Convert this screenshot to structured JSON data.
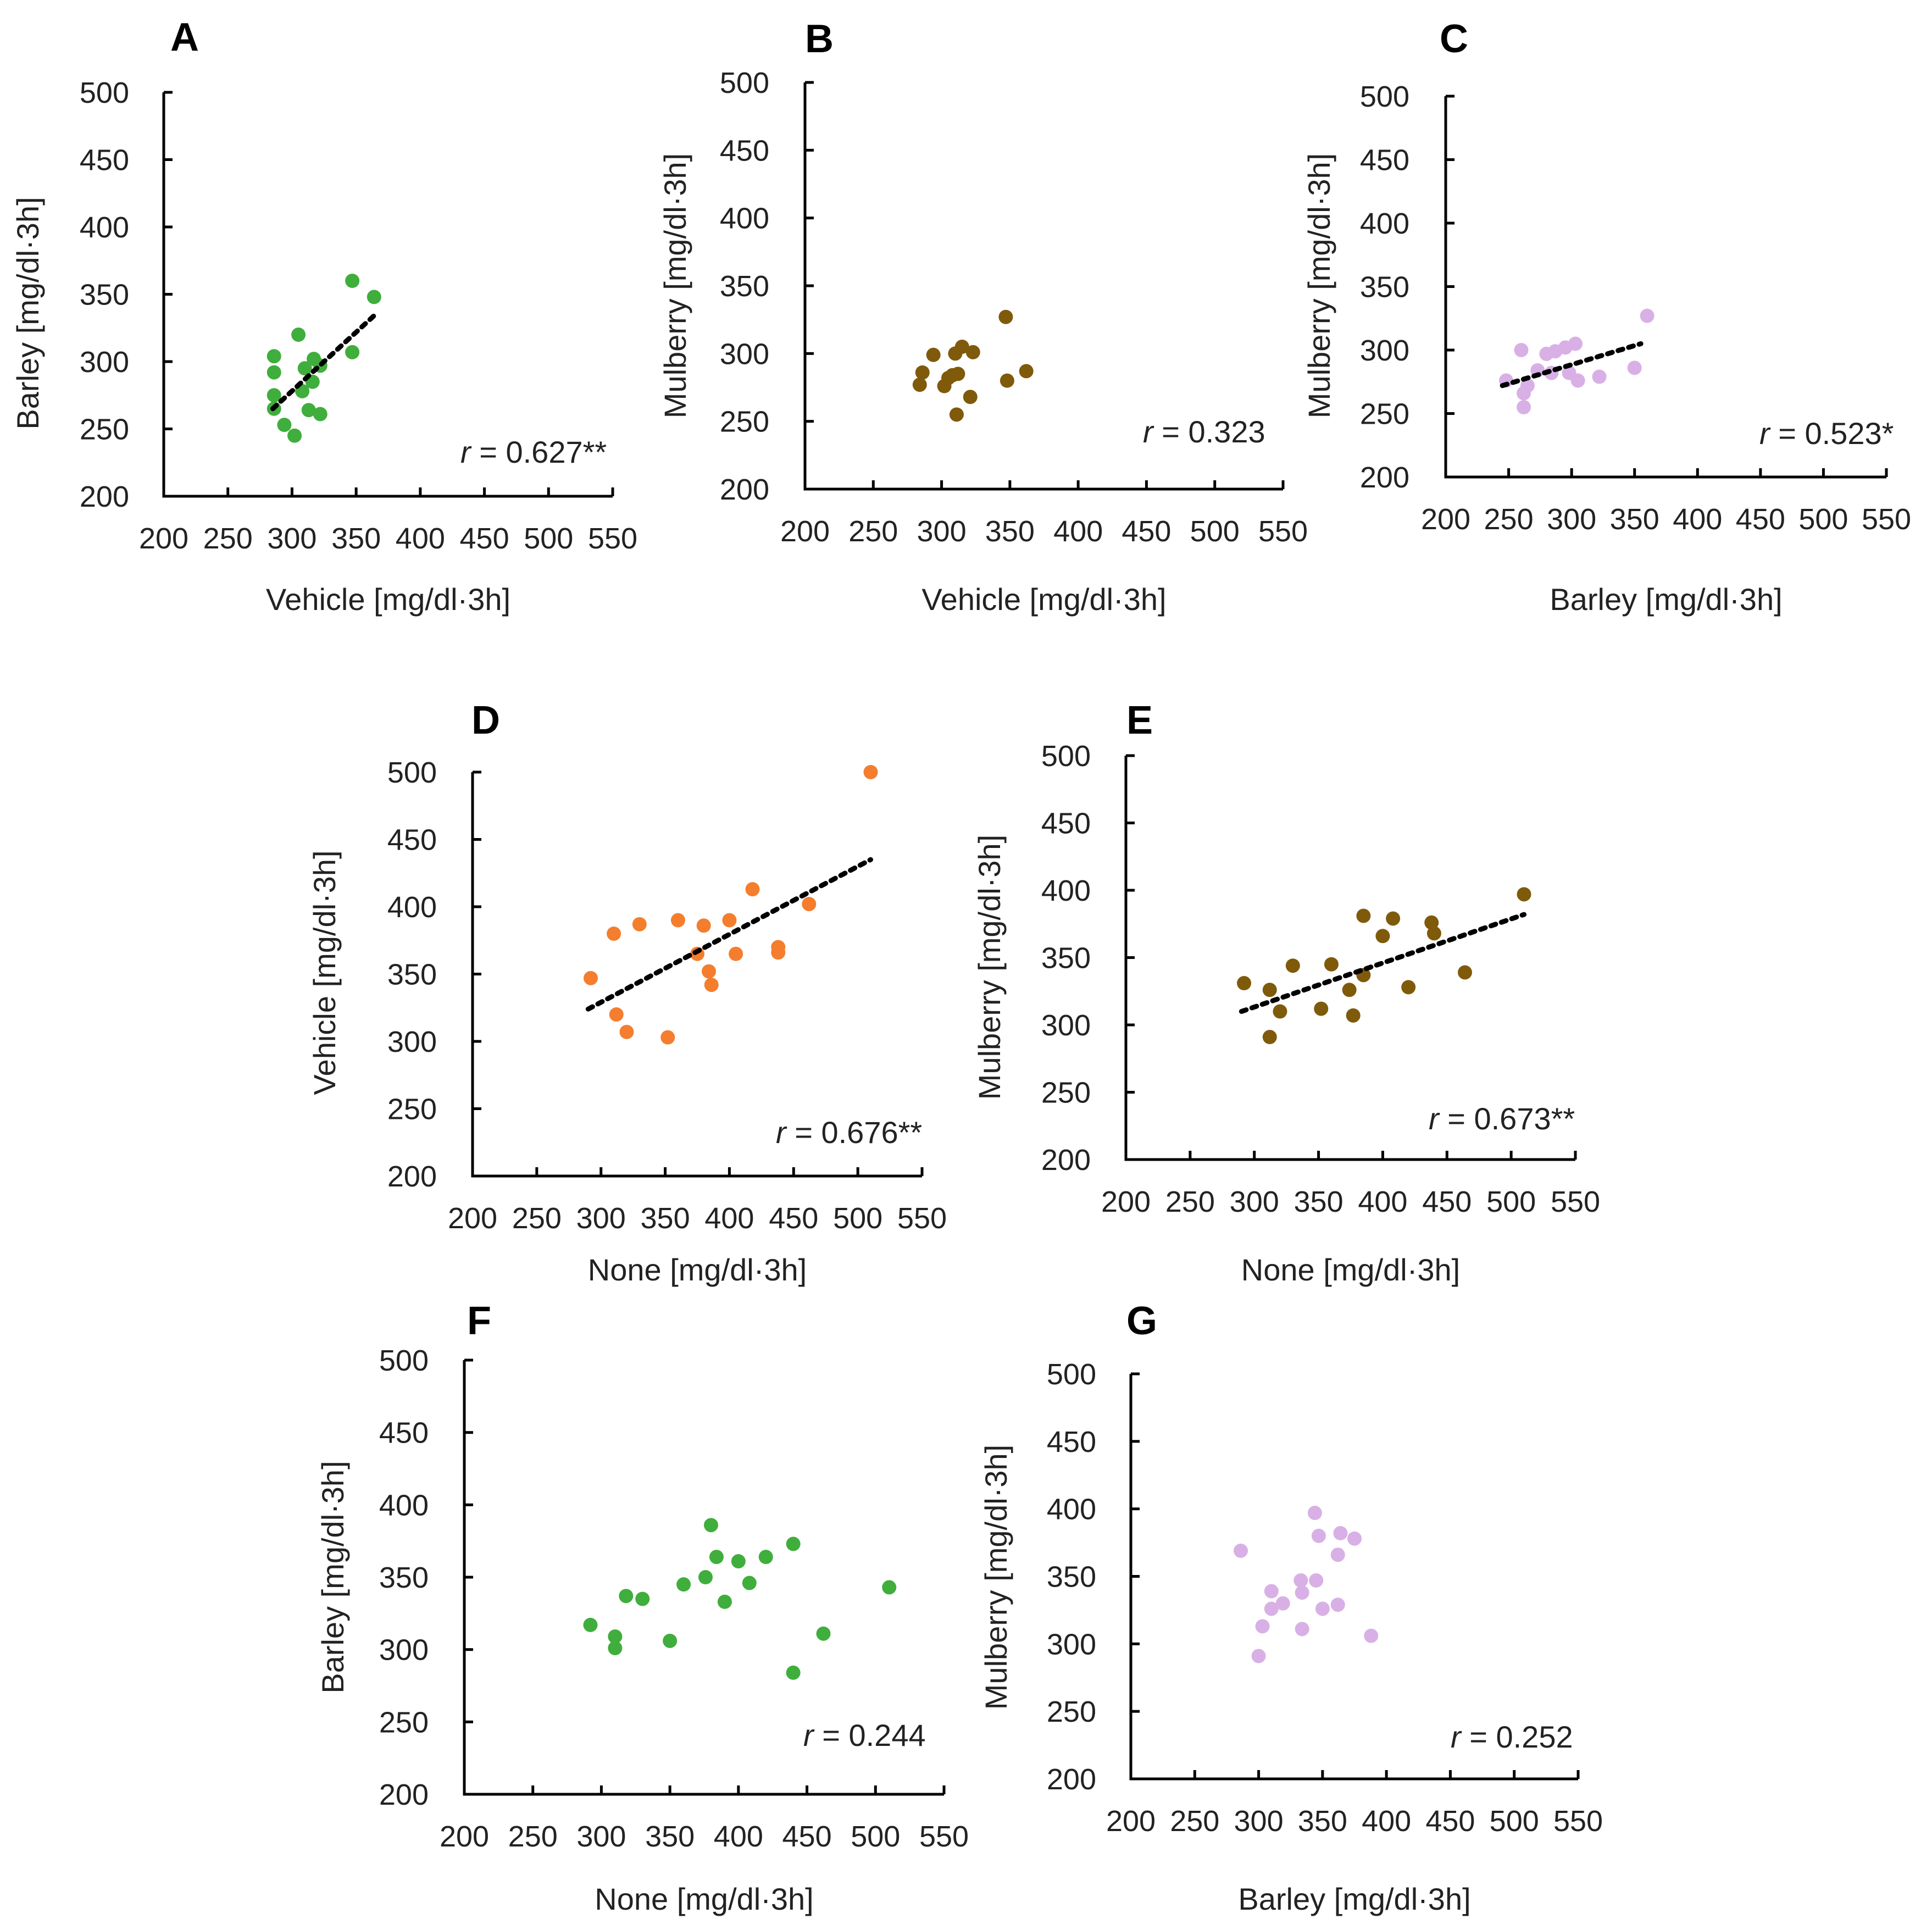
{
  "chart_data": [
    {
      "id": "A",
      "type": "scatter",
      "panel": "A",
      "xlabel": "Vehicle [mg/dl·3h]",
      "ylabel": "Barley [mg/dl·3h]",
      "xlim": [
        200,
        550
      ],
      "ylim": [
        200,
        500
      ],
      "xticks": [
        "200",
        "250",
        "300",
        "350",
        "400",
        "450",
        "500",
        "550"
      ],
      "yticks": [
        "200",
        "250",
        "300",
        "350",
        "400",
        "450",
        "500"
      ],
      "color": "#3fae3c",
      "annotation": {
        "r": "r",
        "value": " = 0.627**"
      },
      "trendline": [
        [
          285,
          265
        ],
        [
          365,
          335
        ]
      ],
      "points": [
        [
          347,
          360
        ],
        [
          364,
          348
        ],
        [
          305,
          320
        ],
        [
          286,
          304
        ],
        [
          317,
          302
        ],
        [
          322,
          297
        ],
        [
          310,
          295
        ],
        [
          286,
          292
        ],
        [
          347,
          307
        ],
        [
          316,
          285
        ],
        [
          308,
          278
        ],
        [
          286,
          275
        ],
        [
          313,
          264
        ],
        [
          286,
          265
        ],
        [
          322,
          261
        ],
        [
          294,
          253
        ],
        [
          302,
          245
        ]
      ]
    },
    {
      "id": "B",
      "type": "scatter",
      "panel": "B",
      "xlabel": "Vehicle [mg/dl·3h]",
      "ylabel": "Mulberry [mg/dl·3h]",
      "xlim": [
        200,
        550
      ],
      "ylim": [
        200,
        500
      ],
      "xticks": [
        "200",
        "250",
        "300",
        "350",
        "400",
        "450",
        "500",
        "550"
      ],
      "yticks": [
        "200",
        "250",
        "300",
        "350",
        "400",
        "450",
        "500"
      ],
      "color": "#7f5a0a",
      "annotation": {
        "r": "r",
        "value": " = 0.323"
      },
      "trendline": null,
      "points": [
        [
          347,
          327
        ],
        [
          315,
          305
        ],
        [
          310,
          300
        ],
        [
          323,
          301
        ],
        [
          294,
          299
        ],
        [
          362,
          287
        ],
        [
          286,
          286
        ],
        [
          308,
          284
        ],
        [
          312,
          285
        ],
        [
          284,
          277
        ],
        [
          305,
          282
        ],
        [
          302,
          276
        ],
        [
          348,
          280
        ],
        [
          321,
          268
        ],
        [
          311,
          255
        ]
      ]
    },
    {
      "id": "C",
      "type": "scatter",
      "panel": "C",
      "xlabel": "Barley [mg/dl·3h]",
      "ylabel": "Mulberry [mg/dl·3h]",
      "xlim": [
        200,
        550
      ],
      "ylim": [
        200,
        500
      ],
      "xticks": [
        "200",
        "250",
        "300",
        "350",
        "400",
        "450",
        "500",
        "550"
      ],
      "yticks": [
        "200",
        "250",
        "300",
        "350",
        "400",
        "450",
        "500"
      ],
      "color": "#d8b0e6",
      "annotation": {
        "r": "r",
        "value": " = 0.523*"
      },
      "trendline": [
        [
          245,
          272
        ],
        [
          355,
          305
        ]
      ],
      "points": [
        [
          360,
          327
        ],
        [
          303,
          305
        ],
        [
          295,
          302
        ],
        [
          260,
          300
        ],
        [
          287,
          299
        ],
        [
          280,
          297
        ],
        [
          350,
          286
        ],
        [
          273,
          284
        ],
        [
          284,
          282
        ],
        [
          305,
          276
        ],
        [
          298,
          282
        ],
        [
          322,
          279
        ],
        [
          265,
          272
        ],
        [
          248,
          276
        ],
        [
          262,
          266
        ],
        [
          262,
          255
        ]
      ]
    },
    {
      "id": "D",
      "type": "scatter",
      "panel": "D",
      "xlabel": "None [mg/dl·3h]",
      "ylabel": "Vehicle [mg/dl·3h]",
      "xlim": [
        200,
        550
      ],
      "ylim": [
        200,
        500
      ],
      "xticks": [
        "200",
        "250",
        "300",
        "350",
        "400",
        "450",
        "500",
        "550"
      ],
      "yticks": [
        "200",
        "250",
        "300",
        "350",
        "400",
        "450",
        "500"
      ],
      "color": "#f47e2e",
      "annotation": {
        "r": "r",
        "value": " = 0.676**"
      },
      "trendline": [
        [
          290,
          324
        ],
        [
          510,
          435
        ]
      ],
      "points": [
        [
          510,
          500
        ],
        [
          418,
          413
        ],
        [
          462,
          402
        ],
        [
          330,
          387
        ],
        [
          360,
          390
        ],
        [
          380,
          386
        ],
        [
          400,
          390
        ],
        [
          310,
          380
        ],
        [
          375,
          365
        ],
        [
          405,
          365
        ],
        [
          438,
          370
        ],
        [
          438,
          366
        ],
        [
          384,
          352
        ],
        [
          386,
          342
        ],
        [
          292,
          347
        ],
        [
          312,
          320
        ],
        [
          320,
          307
        ],
        [
          352,
          303
        ]
      ]
    },
    {
      "id": "E",
      "type": "scatter",
      "panel": "E",
      "xlabel": "None [mg/dl·3h]",
      "ylabel": "Mulberry [mg/dl·3h]",
      "xlim": [
        200,
        550
      ],
      "ylim": [
        200,
        500
      ],
      "xticks": [
        "200",
        "250",
        "300",
        "350",
        "400",
        "450",
        "500",
        "550"
      ],
      "yticks": [
        "200",
        "250",
        "300",
        "350",
        "400",
        "450",
        "500"
      ],
      "color": "#7f5a0a",
      "annotation": {
        "r": "r",
        "value": " = 0.673**"
      },
      "trendline": [
        [
          290,
          310
        ],
        [
          510,
          382
        ]
      ],
      "points": [
        [
          510,
          397
        ],
        [
          385,
          381
        ],
        [
          408,
          379
        ],
        [
          438,
          376
        ],
        [
          440,
          368
        ],
        [
          400,
          366
        ],
        [
          330,
          344
        ],
        [
          360,
          345
        ],
        [
          292,
          331
        ],
        [
          312,
          326
        ],
        [
          374,
          326
        ],
        [
          385,
          337
        ],
        [
          420,
          328
        ],
        [
          464,
          339
        ],
        [
          320,
          310
        ],
        [
          352,
          312
        ],
        [
          377,
          307
        ],
        [
          312,
          291
        ]
      ]
    },
    {
      "id": "F",
      "type": "scatter",
      "panel": "F",
      "xlabel": "None [mg/dl·3h]",
      "ylabel": "Barley [mg/dl·3h]",
      "xlim": [
        200,
        550
      ],
      "ylim": [
        200,
        500
      ],
      "xticks": [
        "200",
        "250",
        "300",
        "350",
        "400",
        "450",
        "500",
        "550"
      ],
      "yticks": [
        "200",
        "250",
        "300",
        "350",
        "400",
        "450",
        "500"
      ],
      "color": "#3fae3c",
      "annotation": {
        "r": "r",
        "value": " = 0.244"
      },
      "trendline": null,
      "points": [
        [
          380,
          386
        ],
        [
          440,
          373
        ],
        [
          384,
          364
        ],
        [
          420,
          364
        ],
        [
          400,
          361
        ],
        [
          376,
          350
        ],
        [
          360,
          345
        ],
        [
          408,
          346
        ],
        [
          510,
          343
        ],
        [
          318,
          337
        ],
        [
          330,
          335
        ],
        [
          390,
          333
        ],
        [
          292,
          317
        ],
        [
          310,
          309
        ],
        [
          310,
          301
        ],
        [
          350,
          306
        ],
        [
          462,
          311
        ],
        [
          440,
          284
        ]
      ]
    },
    {
      "id": "G",
      "type": "scatter",
      "panel": "G",
      "xlabel": "Barley [mg/dl·3h]",
      "ylabel": "Mulberry [mg/dl·3h]",
      "xlim": [
        200,
        550
      ],
      "ylim": [
        200,
        500
      ],
      "xticks": [
        "200",
        "250",
        "300",
        "350",
        "400",
        "450",
        "500",
        "550"
      ],
      "yticks": [
        "200",
        "250",
        "300",
        "350",
        "400",
        "450",
        "500"
      ],
      "color": "#d8b0e6",
      "annotation": {
        "r": "r",
        "value": " = 0.252"
      },
      "trendline": null,
      "points": [
        [
          344,
          397
        ],
        [
          364,
          382
        ],
        [
          347,
          380
        ],
        [
          375,
          378
        ],
        [
          286,
          369
        ],
        [
          362,
          366
        ],
        [
          333,
          347
        ],
        [
          345,
          347
        ],
        [
          334,
          338
        ],
        [
          310,
          339
        ],
        [
          319,
          330
        ],
        [
          310,
          326
        ],
        [
          362,
          329
        ],
        [
          350,
          326
        ],
        [
          303,
          313
        ],
        [
          334,
          311
        ],
        [
          388,
          306
        ],
        [
          300,
          291
        ]
      ]
    }
  ]
}
